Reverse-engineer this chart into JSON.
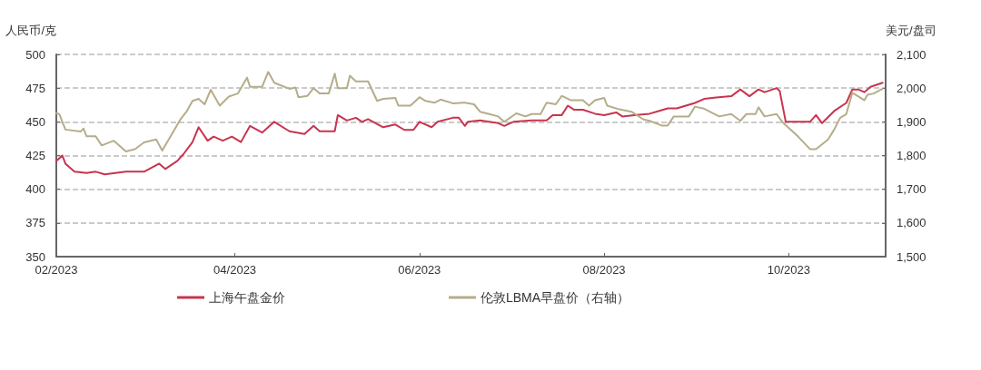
{
  "chart_data": {
    "type": "line",
    "ylabel": "人民币/克",
    "y2label": "美元/盘司",
    "xlim": [
      "2023-02-01",
      "2023-11-02"
    ],
    "xticks": [
      {
        "value": "2023-02-01",
        "label": "02/2023"
      },
      {
        "value": "2023-04-01",
        "label": "04/2023"
      },
      {
        "value": "2023-06-01",
        "label": "06/2023"
      },
      {
        "value": "2023-08-01",
        "label": "08/2023"
      },
      {
        "value": "2023-10-01",
        "label": "10/2023"
      }
    ],
    "ylim": [
      350,
      500
    ],
    "yticks": [
      350,
      375,
      400,
      425,
      450,
      475,
      500
    ],
    "y2lim": [
      1500,
      2100
    ],
    "y2ticks": [
      {
        "value": 1500,
        "label": "1,500"
      },
      {
        "value": 1600,
        "label": "1,600"
      },
      {
        "value": 1700,
        "label": "1,700"
      },
      {
        "value": 1800,
        "label": "1,800"
      },
      {
        "value": 1900,
        "label": "1,900"
      },
      {
        "value": 2000,
        "label": "2,000"
      },
      {
        "value": 2100,
        "label": "2,100"
      }
    ],
    "grid": "y",
    "legend": "bottom",
    "marker": "none",
    "line_style": "solid",
    "series": [
      {
        "name": "上海午盘金价",
        "color": "#c8344e",
        "x": [
          "2023-02-01",
          "2023-02-03",
          "2023-02-04",
          "2023-02-07",
          "2023-02-11",
          "2023-02-14",
          "2023-02-17",
          "2023-02-24",
          "2023-03-02",
          "2023-03-07",
          "2023-03-09",
          "2023-03-13",
          "2023-03-15",
          "2023-03-18",
          "2023-03-20",
          "2023-03-23",
          "2023-03-25",
          "2023-03-28",
          "2023-03-31",
          "2023-04-03",
          "2023-04-06",
          "2023-04-10",
          "2023-04-14",
          "2023-04-19",
          "2023-04-24",
          "2023-04-27",
          "2023-04-29",
          "2023-05-04",
          "2023-05-05",
          "2023-05-08",
          "2023-05-11",
          "2023-05-13",
          "2023-05-15",
          "2023-05-20",
          "2023-05-24",
          "2023-05-27",
          "2023-05-30",
          "2023-06-01",
          "2023-06-05",
          "2023-06-07",
          "2023-06-12",
          "2023-06-14",
          "2023-06-16",
          "2023-06-17",
          "2023-06-21",
          "2023-06-27",
          "2023-06-29",
          "2023-07-02",
          "2023-07-08",
          "2023-07-13",
          "2023-07-15",
          "2023-07-18",
          "2023-07-20",
          "2023-07-22",
          "2023-07-25",
          "2023-07-29",
          "2023-08-01",
          "2023-08-05",
          "2023-08-07",
          "2023-08-11",
          "2023-08-16",
          "2023-08-19",
          "2023-08-22",
          "2023-08-25",
          "2023-08-31",
          "2023-09-03",
          "2023-09-07",
          "2023-09-12",
          "2023-09-15",
          "2023-09-18",
          "2023-09-21",
          "2023-09-23",
          "2023-09-27",
          "2023-09-28",
          "2023-09-30",
          "2023-10-08",
          "2023-10-10",
          "2023-10-12",
          "2023-10-16",
          "2023-10-20",
          "2023-10-22",
          "2023-10-24",
          "2023-10-26",
          "2023-10-28",
          "2023-11-01"
        ],
        "values": [
          421,
          425,
          419,
          413,
          412,
          413,
          411,
          413,
          413,
          419,
          415,
          421,
          426,
          435,
          446,
          436,
          439,
          436,
          439,
          435,
          447,
          442,
          450,
          443,
          441,
          447,
          443,
          443,
          455,
          451,
          453,
          450,
          452,
          446,
          448,
          444,
          444,
          450,
          446,
          450,
          453,
          453,
          447,
          450,
          451,
          449,
          447,
          450,
          451,
          451,
          455,
          455,
          462,
          459,
          459,
          456,
          455,
          457,
          454,
          455,
          456,
          458,
          460,
          460,
          464,
          467,
          468,
          469,
          474,
          469,
          474,
          472,
          475,
          473,
          450,
          450,
          455,
          449,
          458,
          464,
          474,
          474,
          472,
          476,
          479
        ]
      },
      {
        "name": "伦敦LBMA早盘价（右轴）",
        "color": "#b5ad8a",
        "axis": "y2",
        "x": [
          "2023-02-01",
          "2023-02-02",
          "2023-02-04",
          "2023-02-09",
          "2023-02-10",
          "2023-02-11",
          "2023-02-14",
          "2023-02-16",
          "2023-02-20",
          "2023-02-24",
          "2023-02-27",
          "2023-03-02",
          "2023-03-06",
          "2023-03-08",
          "2023-03-14",
          "2023-03-16",
          "2023-03-18",
          "2023-03-20",
          "2023-03-22",
          "2023-03-24",
          "2023-03-27",
          "2023-03-30",
          "2023-04-02",
          "2023-04-05",
          "2023-04-06",
          "2023-04-10",
          "2023-04-12",
          "2023-04-14",
          "2023-04-19",
          "2023-04-21",
          "2023-04-22",
          "2023-04-25",
          "2023-04-27",
          "2023-04-29",
          "2023-05-02",
          "2023-05-04",
          "2023-05-05",
          "2023-05-08",
          "2023-05-09",
          "2023-05-11",
          "2023-05-15",
          "2023-05-18",
          "2023-05-20",
          "2023-05-24",
          "2023-05-25",
          "2023-05-29",
          "2023-06-01",
          "2023-06-03",
          "2023-06-06",
          "2023-06-08",
          "2023-06-12",
          "2023-06-16",
          "2023-06-19",
          "2023-06-21",
          "2023-06-24",
          "2023-06-27",
          "2023-06-29",
          "2023-07-03",
          "2023-07-06",
          "2023-07-08",
          "2023-07-11",
          "2023-07-13",
          "2023-07-16",
          "2023-07-18",
          "2023-07-21",
          "2023-07-25",
          "2023-07-27",
          "2023-07-29",
          "2023-08-01",
          "2023-08-02",
          "2023-08-06",
          "2023-08-10",
          "2023-08-14",
          "2023-08-16",
          "2023-08-20",
          "2023-08-22",
          "2023-08-24",
          "2023-08-29",
          "2023-08-31",
          "2023-09-03",
          "2023-09-08",
          "2023-09-12",
          "2023-09-15",
          "2023-09-17",
          "2023-09-20",
          "2023-09-21",
          "2023-09-23",
          "2023-09-27",
          "2023-09-29",
          "2023-10-04",
          "2023-10-08",
          "2023-10-10",
          "2023-10-14",
          "2023-10-16",
          "2023-10-18",
          "2023-10-20",
          "2023-10-22",
          "2023-10-24",
          "2023-10-26",
          "2023-10-27",
          "2023-10-29",
          "2023-11-01"
        ],
        "values": [
          1925,
          1923,
          1877,
          1871,
          1880,
          1857,
          1857,
          1830,
          1844,
          1812,
          1819,
          1839,
          1848,
          1815,
          1907,
          1930,
          1962,
          1968,
          1952,
          1995,
          1948,
          1975,
          1984,
          2031,
          2004,
          2004,
          2048,
          2016,
          1998,
          2002,
          1973,
          1977,
          2000,
          1984,
          1984,
          2043,
          2000,
          2000,
          2037,
          2020,
          2020,
          1962,
          1968,
          1971,
          1948,
          1948,
          1973,
          1962,
          1957,
          1966,
          1955,
          1957,
          1952,
          1930,
          1923,
          1916,
          1900,
          1925,
          1916,
          1923,
          1923,
          1957,
          1952,
          1977,
          1964,
          1964,
          1948,
          1964,
          1971,
          1948,
          1937,
          1930,
          1907,
          1903,
          1889,
          1889,
          1916,
          1916,
          1945,
          1939,
          1916,
          1923,
          1903,
          1923,
          1923,
          1943,
          1916,
          1923,
          1898,
          1857,
          1819,
          1819,
          1848,
          1877,
          1912,
          1923,
          1986,
          1975,
          1964,
          1980,
          1984,
          1998
        ]
      }
    ]
  }
}
